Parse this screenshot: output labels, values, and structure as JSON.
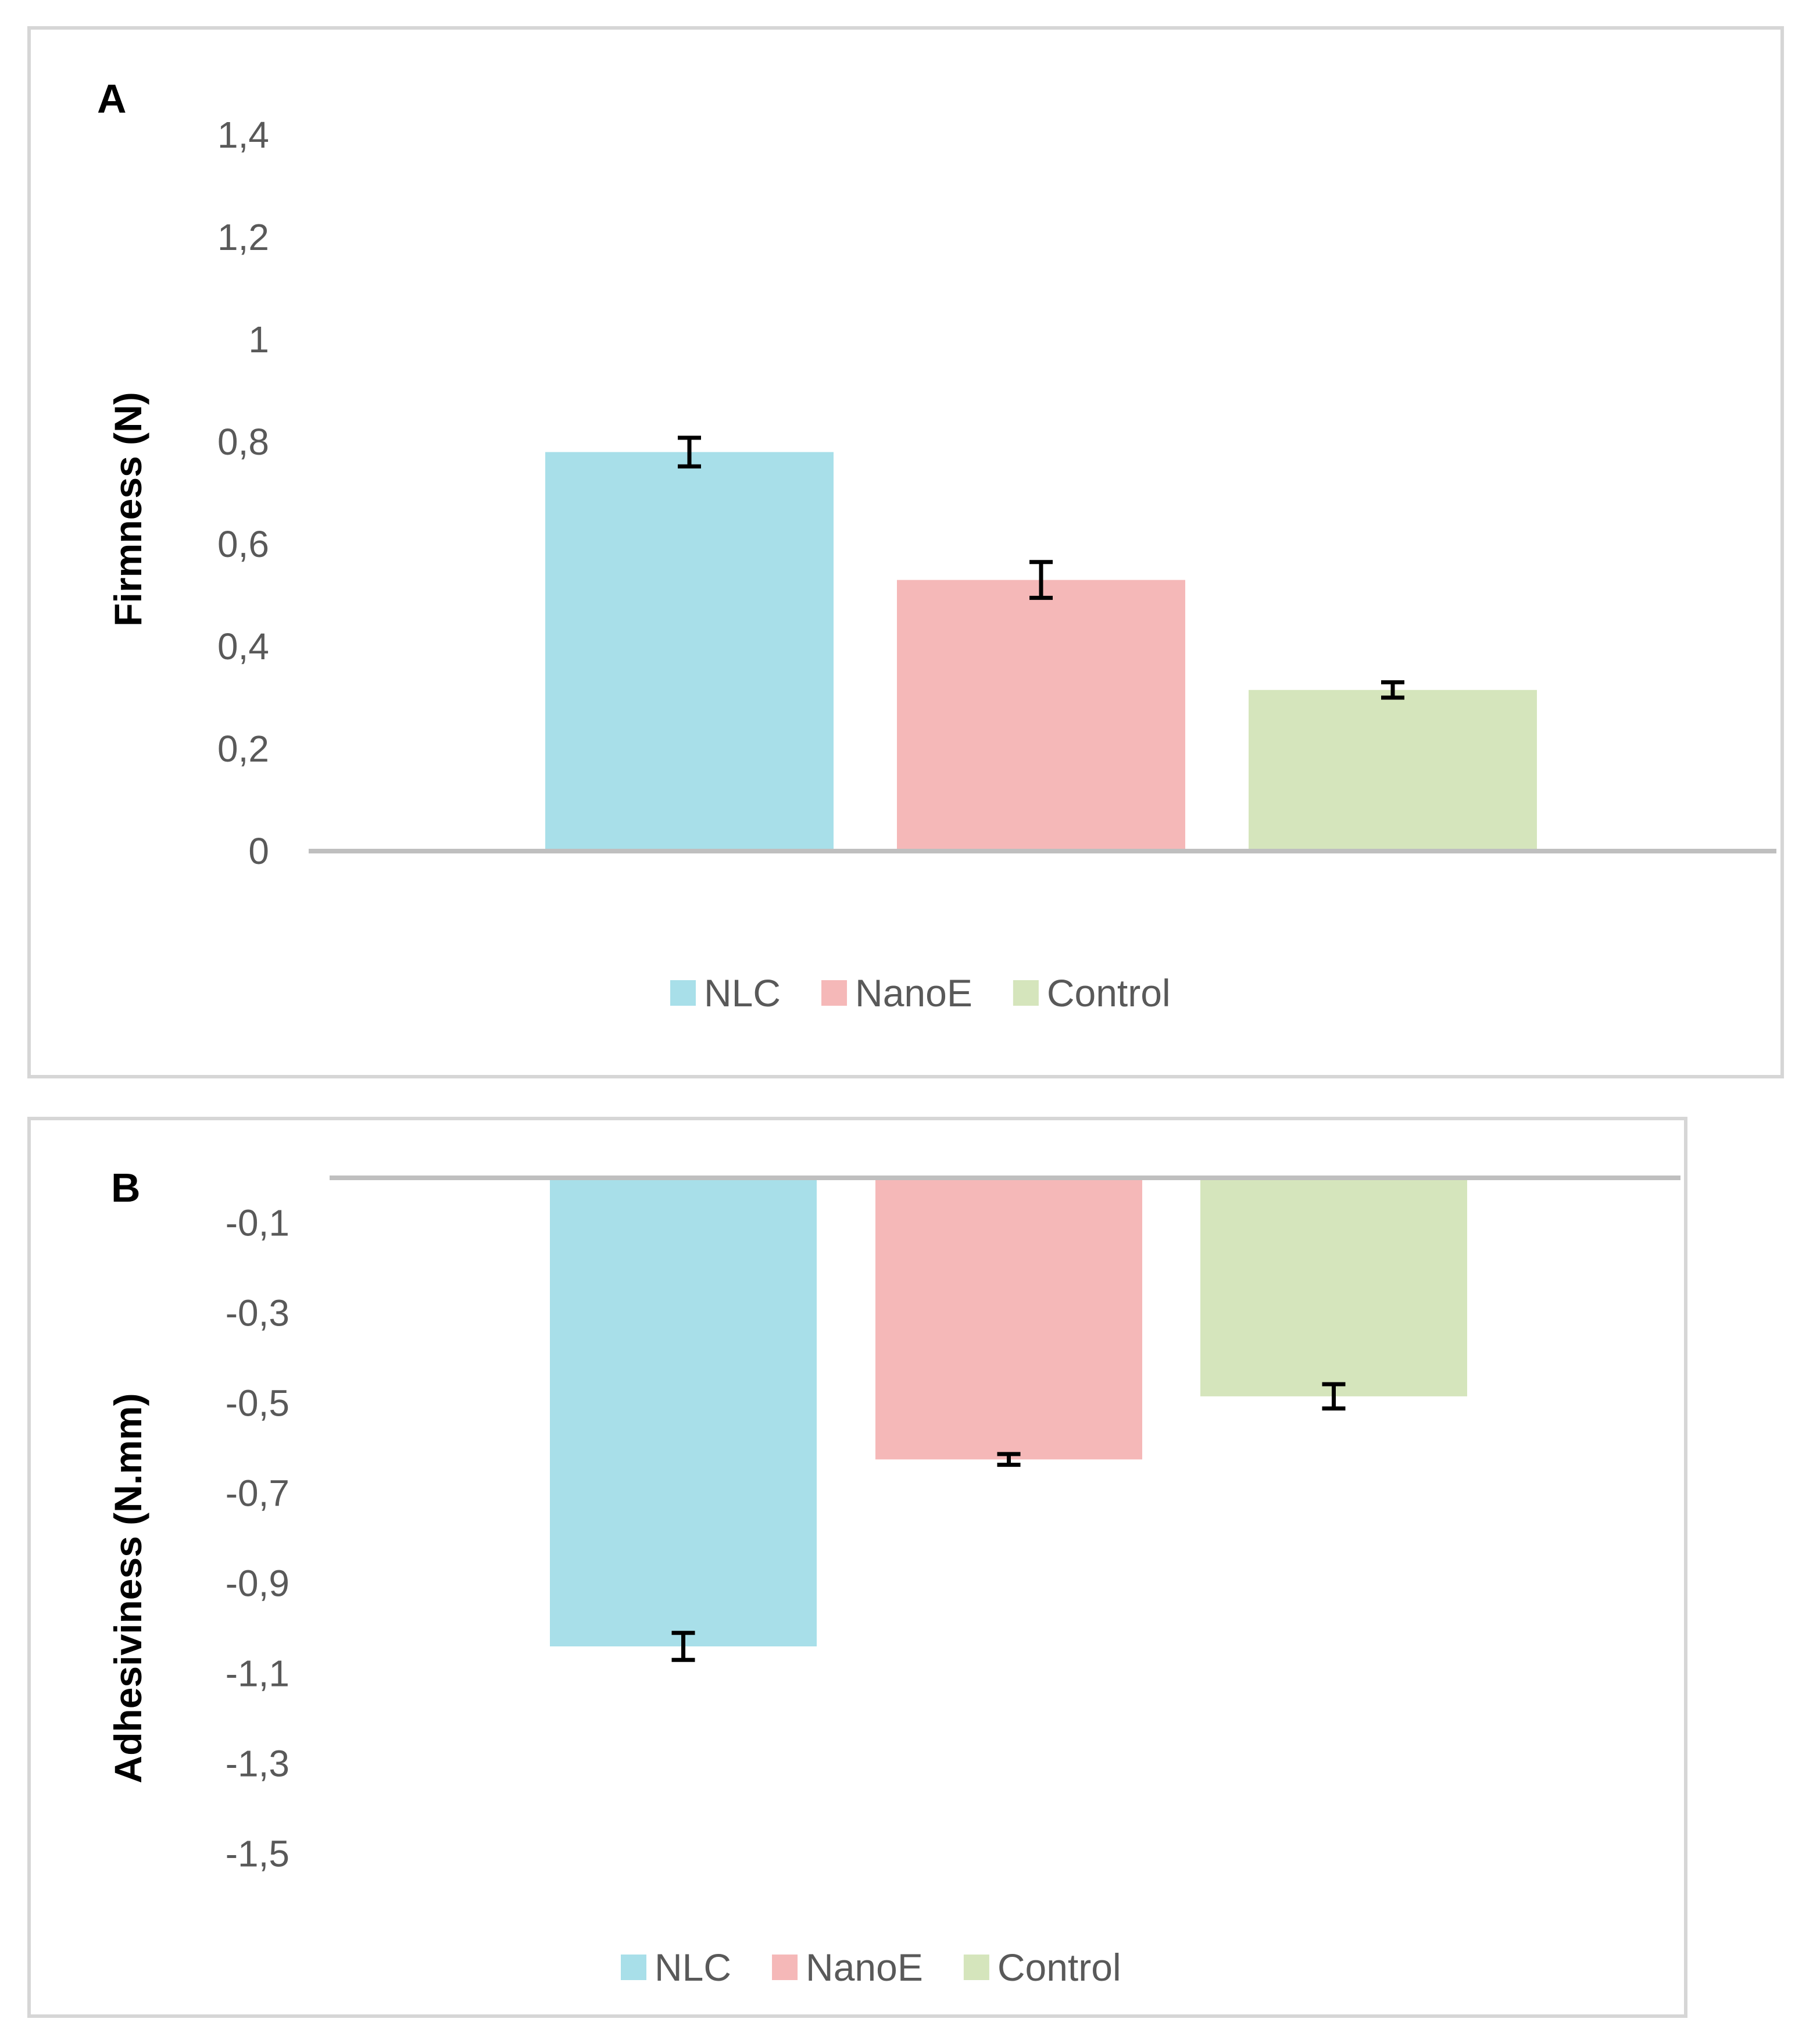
{
  "colors": {
    "NLC": "#a8dfe9",
    "NanoE": "#f5b8b8",
    "Control": "#d5e5bc",
    "axis": "#bfbfbf",
    "error": "#000000"
  },
  "chart_data": [
    {
      "type": "bar",
      "panel_label": "A",
      "ylabel": "Firmness (N)",
      "ylim": [
        0,
        1.4
      ],
      "yticks": [
        "0",
        "0,2",
        "0,4",
        "0,6",
        "0,8",
        "1",
        "1,2",
        "1,4"
      ],
      "ytick_values": [
        0,
        0.2,
        0.4,
        0.6,
        0.8,
        1.0,
        1.2,
        1.4
      ],
      "legend_position": "bottom",
      "series": [
        {
          "name": "NLC",
          "value": 0.78,
          "error": 0.028
        },
        {
          "name": "NanoE",
          "value": 0.53,
          "error": 0.035
        },
        {
          "name": "Control",
          "value": 0.315,
          "error": 0.015
        }
      ]
    },
    {
      "type": "bar",
      "panel_label": "B",
      "ylabel": "Adhesiviness  (N.mm)",
      "ylim": [
        -1.6,
        0
      ],
      "yticks": [
        "-0,1",
        "-0,3",
        "-0,5",
        "-0,7",
        "-0,9",
        "-1,1",
        "-1,3",
        "-1,5"
      ],
      "ytick_values": [
        -0.1,
        -0.3,
        -0.5,
        -0.7,
        -0.9,
        -1.1,
        -1.3,
        -1.5
      ],
      "legend_position": "bottom",
      "series": [
        {
          "name": "NLC",
          "value": -1.04,
          "error": 0.03
        },
        {
          "name": "NanoE",
          "value": -0.625,
          "error": 0.012
        },
        {
          "name": "Control",
          "value": -0.485,
          "error": 0.027
        }
      ]
    }
  ]
}
